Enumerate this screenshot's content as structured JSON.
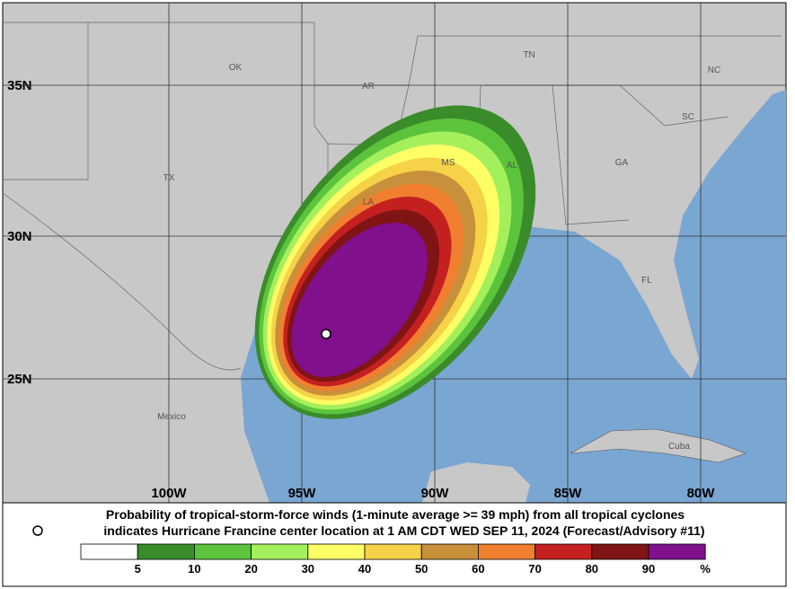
{
  "map": {
    "lat_labels": [
      "35N",
      "30N",
      "25N"
    ],
    "lon_labels": [
      "100W",
      "95W",
      "90W",
      "85W",
      "80W"
    ],
    "place_labels": [
      "OK",
      "AR",
      "TN",
      "NC",
      "SC",
      "GA",
      "AL",
      "MS",
      "LA",
      "TX",
      "FL",
      "Mexico",
      "Cuba"
    ]
  },
  "caption": {
    "line1": "Probability of tropical-storm-force winds (1-minute average >= 39 mph) from all tropical cyclones",
    "line2": "indicates Hurricane Francine center location at 1 AM CDT WED SEP 11, 2024 (Forecast/Advisory #11)"
  },
  "legend": {
    "labels": [
      5,
      10,
      20,
      30,
      40,
      50,
      60,
      70,
      80,
      90
    ],
    "unit": "%",
    "colors": [
      "#ffffff",
      "#3a8c2a",
      "#5cc43c",
      "#a4f05c",
      "#ffff66",
      "#f5d247",
      "#c8903a",
      "#f08030",
      "#c42020",
      "#801414",
      "#80108c"
    ]
  }
}
